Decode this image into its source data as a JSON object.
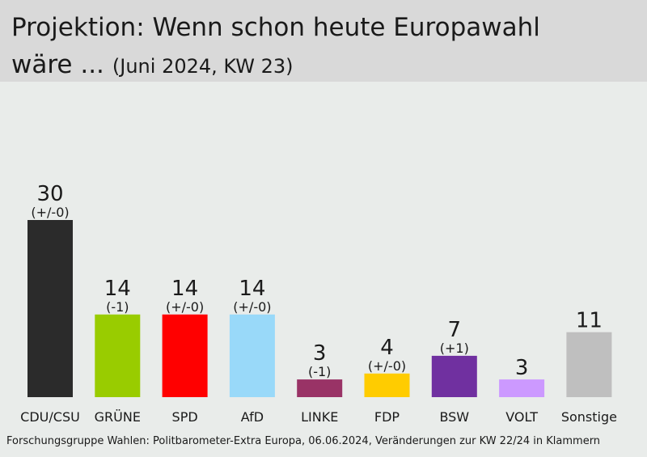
{
  "header": {
    "title_line1": "Projektion: Wenn schon heute Europawahl",
    "title_line2": "wäre ...",
    "subtitle": "(Juni 2024, KW 23)"
  },
  "footnote": "Forschungsgruppe Wahlen: Politbarometer-Extra Europa, 06.06.2024, Veränderungen zur KW 22/24 in Klammern",
  "chart_data": {
    "type": "bar",
    "title": "Projektion: Wenn schon heute Europawahl wäre ... (Juni 2024, KW 23)",
    "categories": [
      "CDU/CSU",
      "GRÜNE",
      "SPD",
      "AfD",
      "LINKE",
      "FDP",
      "BSW",
      "VOLT",
      "Sonstige"
    ],
    "values": [
      30,
      14,
      14,
      14,
      3,
      4,
      7,
      3,
      11
    ],
    "changes": [
      "(+/-0)",
      "(-1)",
      "(+/-0)",
      "(+/-0)",
      "(-1)",
      "(+/-0)",
      "(+1)",
      "",
      ""
    ],
    "colors": [
      "#2b2b2b",
      "#99cc00",
      "#ff0000",
      "#99d9f9",
      "#993366",
      "#ffcc00",
      "#7030a0",
      "#cc99ff",
      "#bfbfbf"
    ],
    "ylim": [
      0,
      30
    ],
    "grid": false,
    "legend": "none"
  }
}
